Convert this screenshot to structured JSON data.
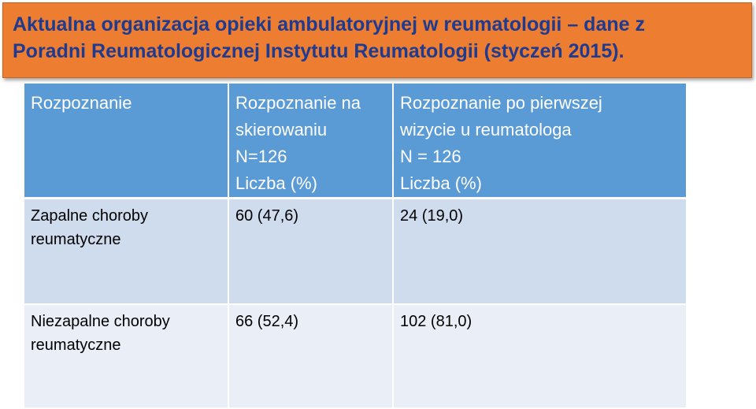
{
  "slide": {
    "title_lines": [
      "Aktualna organizacja opieki ambulatoryjnej w reumatologii – dane z",
      "Poradni Reumatologicznej Instytutu Reumatologii (styczeń 2015)."
    ]
  },
  "table": {
    "headers": [
      {
        "lines": [
          "Rozpoznanie"
        ]
      },
      {
        "lines": [
          "Rozpoznanie na",
          "skierowaniu",
          "N=126",
          "Liczba (%)"
        ]
      },
      {
        "lines": [
          "Rozpoznanie po pierwszej",
          "wizycie u reumatologa",
          "N = 126",
          "Liczba (%)"
        ]
      }
    ],
    "rows": [
      {
        "label_lines": [
          "Zapalne choroby",
          "reumatyczne"
        ],
        "referral": "60 (47,6)",
        "after_visit": "24 (19,0)"
      },
      {
        "label_lines": [
          "Niezapalne choroby",
          "reumatyczne"
        ],
        "referral": "66 (52,4)",
        "after_visit": "102 (81,0)"
      }
    ]
  },
  "colors": {
    "title_background": "#ed7d31",
    "title_text": "#1f3b8f",
    "header_background": "#5b9bd5",
    "row_dark": "#cfdcee",
    "row_light": "#e9eef7"
  }
}
